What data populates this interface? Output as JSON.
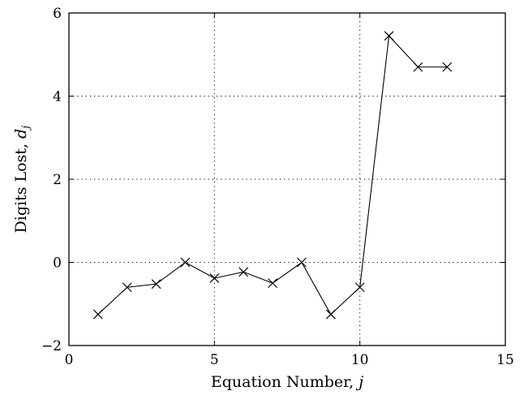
{
  "chart_data": {
    "type": "line",
    "title": "",
    "xlabel": "Equation Number, ",
    "xlabel_var": "j",
    "ylabel": "Digits Lost, ",
    "ylabel_var": "d",
    "ylabel_sub": "j",
    "xlim": [
      0,
      15
    ],
    "ylim": [
      -2,
      6
    ],
    "xticks": [
      0,
      5,
      10,
      15
    ],
    "yticks": [
      -2,
      0,
      2,
      4,
      6
    ],
    "xtick_labels": [
      "0",
      "5",
      "10",
      "15"
    ],
    "ytick_labels": [
      "−2",
      "0",
      "2",
      "4",
      "6"
    ],
    "grid": true,
    "grid_style": "dotted",
    "marker": "x",
    "line_color": "#000000",
    "series": [
      {
        "x": [
          1,
          2,
          3,
          4,
          5,
          6,
          7,
          8,
          9,
          10,
          11,
          12,
          13
        ],
        "y": [
          -1.25,
          -0.6,
          -0.52,
          0.0,
          -0.38,
          -0.23,
          -0.5,
          0.0,
          -1.25,
          -0.6,
          5.45,
          4.7,
          4.7
        ]
      }
    ]
  }
}
